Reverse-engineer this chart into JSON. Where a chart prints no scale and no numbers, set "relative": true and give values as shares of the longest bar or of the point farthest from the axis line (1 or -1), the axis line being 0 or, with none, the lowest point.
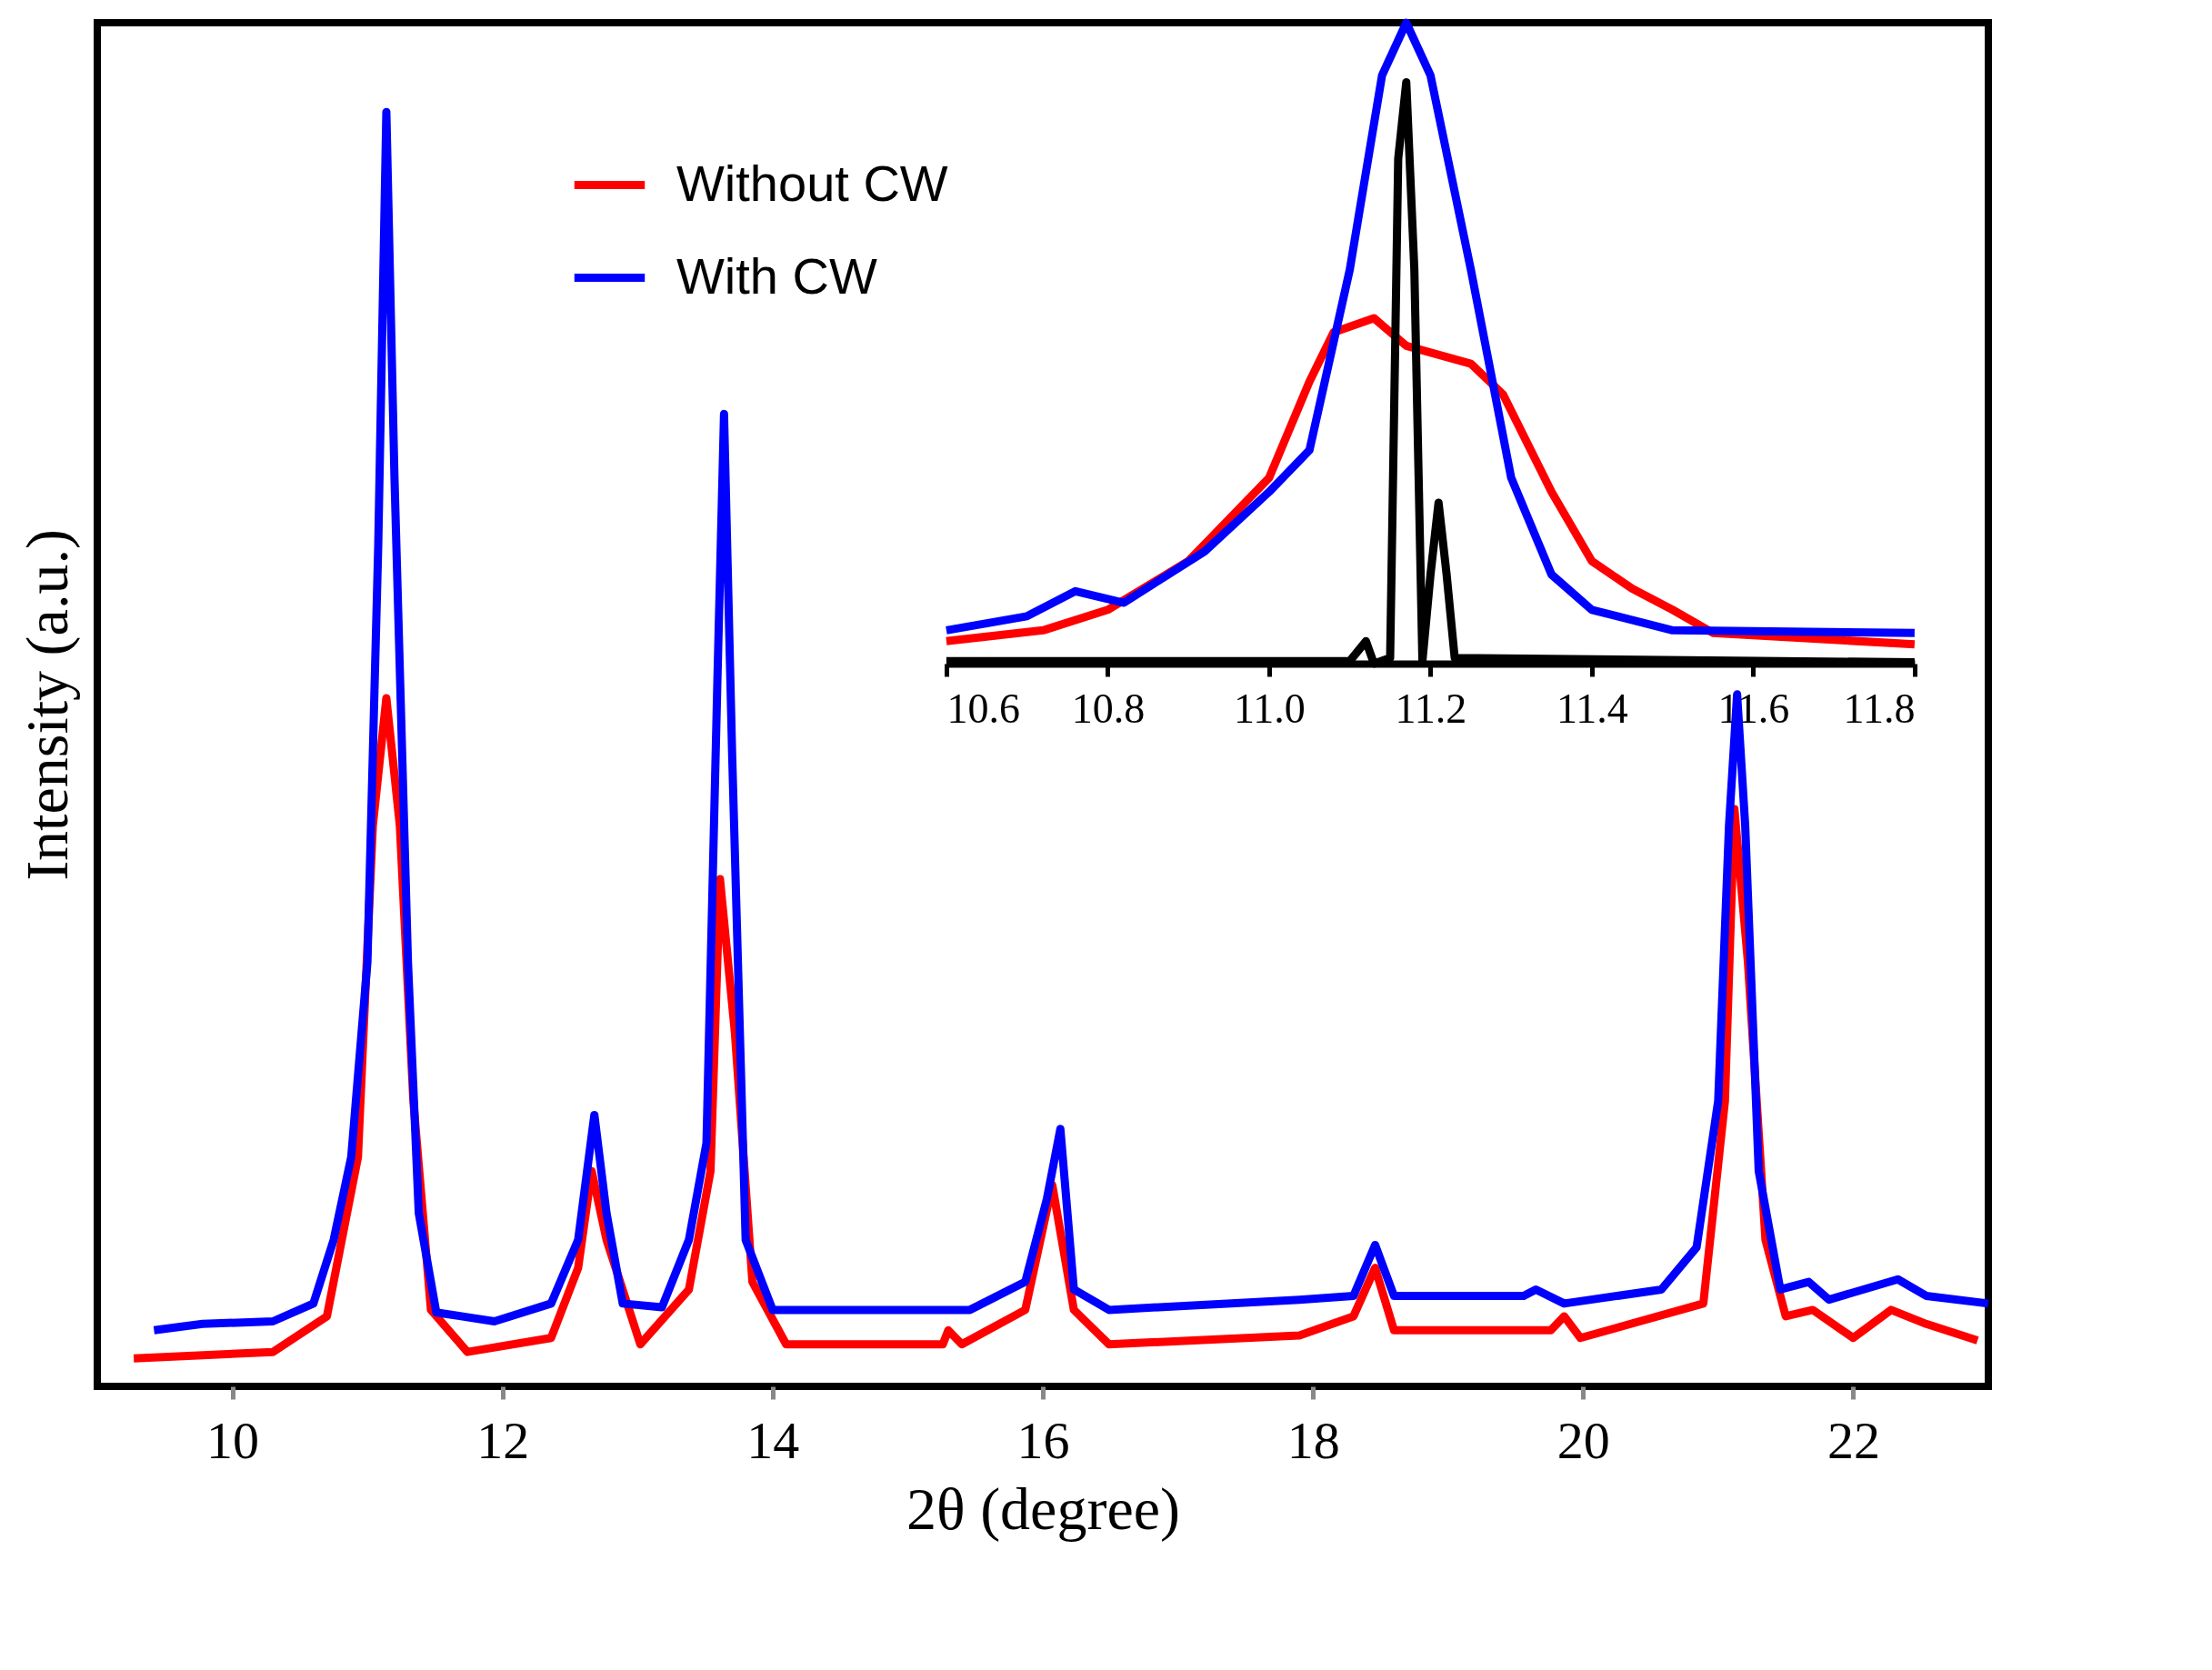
{
  "chart_data": [
    {
      "type": "line",
      "xlabel": "2θ (degree)",
      "ylabel": "Intensity (a.u.)",
      "relative": true,
      "xlim": [
        9,
        23
      ],
      "xticks": [
        10,
        12,
        14,
        16,
        18,
        20,
        22
      ],
      "legend": "top",
      "series": [
        {
          "name": "Without CW",
          "color": "#ff0000",
          "x": [
            9.27,
            10.3,
            10.7,
            10.93,
            11.04,
            11.14,
            11.24,
            11.34,
            11.47,
            11.74,
            12.36,
            12.56,
            12.66,
            12.77,
            13.02,
            13.38,
            13.54,
            13.61,
            13.72,
            13.85,
            14.1,
            15.26,
            15.3,
            15.4,
            15.87,
            16.07,
            16.23,
            16.49,
            17.9,
            18.3,
            18.46,
            18.6,
            19.76,
            19.86,
            19.98,
            20.89,
            21.05,
            21.12,
            21.22,
            21.35,
            21.5,
            21.7,
            22.0,
            22.28,
            22.54,
            22.92
          ],
          "values": [
            0.022,
            0.027,
            0.055,
            0.18,
            0.44,
            0.54,
            0.44,
            0.224,
            0.06,
            0.027,
            0.038,
            0.093,
            0.169,
            0.115,
            0.033,
            0.076,
            0.169,
            0.398,
            0.278,
            0.082,
            0.033,
            0.033,
            0.044,
            0.033,
            0.06,
            0.158,
            0.06,
            0.033,
            0.04,
            0.055,
            0.093,
            0.044,
            0.044,
            0.055,
            0.038,
            0.065,
            0.224,
            0.453,
            0.333,
            0.115,
            0.055,
            0.06,
            0.038,
            0.06,
            0.049,
            0.036
          ]
        },
        {
          "name": "With CW",
          "color": "#0000ff",
          "x": [
            9.42,
            9.78,
            10.3,
            10.6,
            10.75,
            10.88,
            11.0,
            11.08,
            11.14,
            11.2,
            11.3,
            11.38,
            11.51,
            11.94,
            12.36,
            12.56,
            12.68,
            12.77,
            12.89,
            13.18,
            13.38,
            13.51,
            13.59,
            13.64,
            13.7,
            13.8,
            14.0,
            15.46,
            15.87,
            16.03,
            16.13,
            16.23,
            16.49,
            17.9,
            18.3,
            18.46,
            18.6,
            19.56,
            19.65,
            19.86,
            20.58,
            20.84,
            21.0,
            21.08,
            21.14,
            21.2,
            21.3,
            21.46,
            21.67,
            21.82,
            22.33,
            22.54,
            23.0
          ],
          "values": [
            0.044,
            0.049,
            0.051,
            0.065,
            0.115,
            0.18,
            0.333,
            0.66,
            1.0,
            0.714,
            0.333,
            0.136,
            0.058,
            0.051,
            0.065,
            0.115,
            0.213,
            0.136,
            0.065,
            0.062,
            0.115,
            0.191,
            0.55,
            0.763,
            0.496,
            0.115,
            0.06,
            0.06,
            0.082,
            0.147,
            0.202,
            0.076,
            0.06,
            0.068,
            0.071,
            0.111,
            0.071,
            0.071,
            0.076,
            0.065,
            0.076,
            0.109,
            0.224,
            0.44,
            0.543,
            0.44,
            0.169,
            0.076,
            0.082,
            0.068,
            0.084,
            0.071,
            0.065
          ]
        }
      ]
    },
    {
      "type": "line",
      "relative": true,
      "xlim": [
        10.6,
        11.8
      ],
      "xticks": [
        10.6,
        10.8,
        {
          "value": 11,
          "label": "11.0"
        },
        11.2,
        11.4,
        11.6,
        11.8
      ],
      "series": [
        {
          "color": "#ff0000",
          "x": [
            10.6,
            10.72,
            10.8,
            10.9,
            11.0,
            11.05,
            11.08,
            11.13,
            11.17,
            11.25,
            11.29,
            11.35,
            11.4,
            11.45,
            11.5,
            11.55,
            11.8
          ],
          "values": [
            0.035,
            0.052,
            0.084,
            0.16,
            0.29,
            0.44,
            0.517,
            0.539,
            0.496,
            0.468,
            0.42,
            0.268,
            0.16,
            0.117,
            0.084,
            0.048,
            0.03
          ]
        },
        {
          "color": "#0000ff",
          "x": [
            10.6,
            10.7,
            10.76,
            10.82,
            10.92,
            11.0,
            11.05,
            11.1,
            11.14,
            11.17,
            11.2,
            11.25,
            11.3,
            11.35,
            11.4,
            11.5,
            11.8
          ],
          "values": [
            0.052,
            0.074,
            0.113,
            0.095,
            0.175,
            0.268,
            0.333,
            0.615,
            0.918,
            1.0,
            0.918,
            0.615,
            0.29,
            0.139,
            0.084,
            0.052,
            0.048
          ]
        },
        {
          "color": "#000000",
          "x": [
            10.6,
            11.1,
            11.12,
            11.13,
            11.15,
            11.16,
            11.17,
            11.18,
            11.19,
            11.2,
            11.21,
            11.22,
            11.23,
            11.8
          ],
          "values": [
            0.004,
            0.004,
            0.035,
            0.0,
            0.009,
            0.788,
            0.907,
            0.615,
            0.004,
            0.139,
            0.251,
            0.139,
            0.009,
            0.002
          ]
        }
      ]
    }
  ]
}
